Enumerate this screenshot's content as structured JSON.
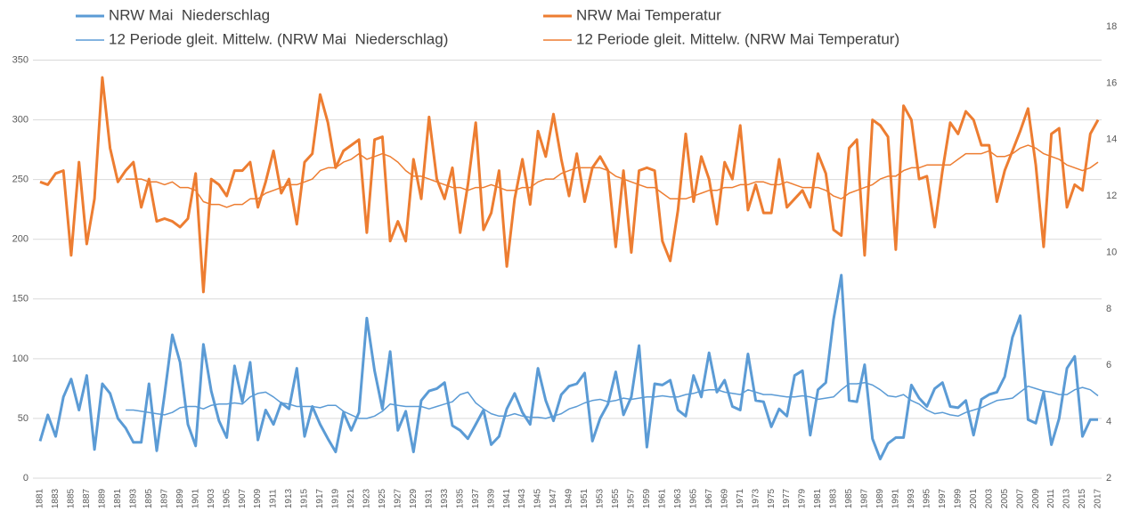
{
  "chart_data": {
    "type": "line",
    "categories": [
      "1881",
      null,
      "1883",
      null,
      "1885",
      null,
      "1887",
      null,
      "1889",
      null,
      "1891",
      null,
      "1893",
      null,
      "1895",
      null,
      "1897",
      null,
      "1899",
      null,
      "1901",
      null,
      "1903",
      null,
      "1905",
      null,
      "1907",
      null,
      "1909",
      null,
      "1911",
      null,
      "1913",
      null,
      "1915",
      null,
      "1917",
      null,
      "1919",
      null,
      "1921",
      null,
      "1923",
      null,
      "1925",
      null,
      "1927",
      null,
      "1929",
      null,
      "1931",
      null,
      "1933",
      null,
      "1935",
      null,
      "1937",
      null,
      "1939",
      null,
      "1941",
      null,
      "1943",
      null,
      "1945",
      null,
      "1947",
      null,
      "1949",
      null,
      "1951",
      null,
      "1953",
      null,
      "1955",
      null,
      "1957",
      null,
      "1959",
      null,
      "1961",
      null,
      "1963",
      null,
      "1965",
      null,
      "1967",
      null,
      "1969",
      null,
      "1971",
      null,
      "1973",
      null,
      "1975",
      null,
      "1977",
      null,
      "1979",
      null,
      "1981",
      null,
      "1983",
      null,
      "1985",
      null,
      "1987",
      null,
      "1989",
      null,
      "1991",
      null,
      "1993",
      null,
      "1995",
      null,
      "1997",
      null,
      "1999",
      null,
      "2001",
      null,
      "2003",
      null,
      "2005",
      null,
      "2007",
      null,
      "2009",
      null,
      "2011",
      null,
      "2013",
      null,
      "2015",
      null,
      "2017"
    ],
    "series": [
      {
        "name": "NRW Mai  Niederschlag",
        "color": "#5b9bd5",
        "width": 3,
        "values": [
          31,
          53,
          35,
          68,
          83,
          57,
          86,
          24,
          79,
          71,
          50,
          42,
          30,
          30,
          79,
          23,
          70,
          120,
          97,
          45,
          27,
          112,
          73,
          48,
          34,
          94,
          64,
          97,
          32,
          57,
          45,
          63,
          58,
          92,
          35,
          60,
          45,
          33,
          22,
          55,
          40,
          55,
          134,
          90,
          58,
          106,
          40,
          56,
          22,
          65,
          73,
          75,
          80,
          44,
          40,
          33,
          45,
          57,
          28,
          35,
          58,
          71,
          55,
          45,
          92,
          65,
          48,
          70,
          77,
          79,
          88,
          31,
          50,
          62,
          89,
          53,
          68,
          111,
          26,
          79,
          78,
          82,
          57,
          52,
          86,
          68,
          105,
          72,
          82,
          60,
          57,
          104,
          65,
          64,
          43,
          58,
          52,
          86,
          90,
          36,
          74,
          80,
          133,
          170,
          65,
          64,
          95,
          33,
          16,
          29,
          34,
          34,
          78,
          67,
          60,
          75,
          80,
          60,
          59,
          65,
          36,
          66,
          70,
          72,
          85,
          118,
          136,
          49,
          46,
          72,
          28,
          50,
          92,
          102,
          35,
          49,
          49
        ]
      },
      {
        "name": "NRW Mai Temperatur",
        "color": "#ed7d31",
        "width": 3,
        "axis": "y2",
        "values": [
          12.5,
          12.4,
          12.8,
          12.9,
          9.9,
          13.2,
          10.3,
          11.9,
          16.2,
          13.7,
          12.5,
          12.9,
          13.2,
          11.6,
          12.6,
          11.1,
          11.2,
          11.1,
          10.9,
          11.2,
          12.8,
          8.6,
          12.6,
          12.4,
          12.0,
          12.9,
          12.9,
          13.2,
          11.6,
          12.5,
          13.6,
          12.1,
          12.6,
          11.0,
          13.2,
          13.5,
          15.6,
          14.6,
          13.0,
          13.6,
          13.8,
          14.0,
          10.7,
          14.0,
          14.1,
          10.4,
          11.1,
          10.4,
          13.3,
          11.9,
          14.8,
          12.6,
          11.9,
          13.0,
          10.7,
          12.4,
          14.6,
          10.8,
          11.4,
          12.9,
          9.5,
          11.9,
          13.3,
          11.7,
          14.3,
          13.4,
          14.9,
          13.3,
          12.0,
          13.5,
          11.8,
          13.0,
          13.4,
          12.9,
          10.2,
          12.9,
          10.0,
          12.9,
          13.0,
          12.9,
          10.4,
          9.7,
          11.5,
          14.2,
          11.8,
          13.4,
          12.6,
          11.0,
          13.2,
          12.6,
          14.5,
          11.5,
          12.4,
          11.4,
          11.4,
          13.3,
          11.6,
          11.9,
          12.2,
          11.6,
          13.5,
          12.8,
          10.8,
          10.6,
          13.7,
          14.0,
          9.9,
          14.7,
          14.5,
          14.1,
          10.1,
          15.2,
          14.7,
          12.6,
          12.7,
          10.9,
          12.9,
          14.6,
          14.2,
          15.0,
          14.7,
          13.8,
          13.8,
          11.8,
          12.9,
          13.6,
          14.3,
          15.1,
          13.1,
          10.2,
          14.2,
          14.4,
          11.6,
          12.4,
          12.2,
          14.2,
          14.7
        ]
      },
      {
        "name": "12 Periode gleit. Mittelw. (NRW Mai  Niederschlag)",
        "color": "#5b9bd5",
        "width": 1.5,
        "values": [
          null,
          null,
          null,
          null,
          null,
          null,
          null,
          null,
          null,
          null,
          null,
          57,
          57,
          56,
          55,
          54,
          53,
          55,
          59,
          60,
          60,
          58,
          61,
          62,
          62,
          63,
          62,
          68,
          71,
          72,
          68,
          63,
          62,
          60,
          60,
          60,
          59,
          61,
          61,
          56,
          53,
          50,
          50,
          52,
          56,
          62,
          61,
          60,
          60,
          60,
          58,
          60,
          62,
          64,
          70,
          72,
          63,
          58,
          54,
          52,
          52,
          54,
          52,
          51,
          51,
          50,
          52,
          54,
          58,
          60,
          63,
          65,
          66,
          64,
          65,
          67,
          66,
          67,
          68,
          68,
          69,
          68,
          68,
          70,
          71,
          73,
          74,
          74,
          72,
          71,
          70,
          74,
          72,
          70,
          70,
          69,
          68,
          68,
          69,
          68,
          66,
          67,
          68,
          74,
          79,
          79,
          80,
          78,
          74,
          69,
          68,
          70,
          65,
          62,
          57,
          54,
          55,
          53,
          52,
          55,
          57,
          59,
          62,
          65,
          66,
          67,
          72,
          77,
          75,
          73,
          72,
          70,
          70,
          74,
          76,
          74,
          69
        ]
      },
      {
        "name": "12 Periode gleit. Mittelw. (NRW Mai Temperatur)",
        "color": "#ed7d31",
        "width": 1.5,
        "axis": "y2",
        "values": [
          null,
          null,
          null,
          null,
          null,
          null,
          null,
          null,
          null,
          null,
          null,
          12.6,
          12.6,
          12.6,
          12.5,
          12.5,
          12.4,
          12.5,
          12.3,
          12.3,
          12.2,
          11.8,
          11.7,
          11.7,
          11.6,
          11.7,
          11.7,
          11.9,
          11.9,
          12.1,
          12.2,
          12.3,
          12.4,
          12.4,
          12.5,
          12.6,
          12.9,
          13.0,
          13.0,
          13.2,
          13.3,
          13.5,
          13.3,
          13.4,
          13.5,
          13.4,
          13.2,
          12.9,
          12.7,
          12.7,
          12.6,
          12.5,
          12.4,
          12.3,
          12.3,
          12.2,
          12.3,
          12.3,
          12.4,
          12.3,
          12.2,
          12.2,
          12.3,
          12.3,
          12.5,
          12.6,
          12.6,
          12.8,
          12.9,
          13.0,
          13.0,
          13.0,
          13.0,
          12.9,
          12.7,
          12.6,
          12.5,
          12.4,
          12.3,
          12.3,
          12.1,
          11.9,
          11.9,
          11.9,
          12.0,
          12.1,
          12.2,
          12.2,
          12.3,
          12.3,
          12.4,
          12.4,
          12.5,
          12.5,
          12.4,
          12.4,
          12.5,
          12.4,
          12.3,
          12.3,
          12.3,
          12.2,
          12.0,
          11.9,
          12.1,
          12.2,
          12.3,
          12.4,
          12.6,
          12.7,
          12.7,
          12.9,
          13.0,
          13.0,
          13.1,
          13.1,
          13.1,
          13.1,
          13.3,
          13.5,
          13.5,
          13.5,
          13.6,
          13.4,
          13.4,
          13.5,
          13.7,
          13.8,
          13.7,
          13.5,
          13.4,
          13.3,
          13.1,
          13.0,
          12.9,
          13.0,
          13.2
        ]
      }
    ],
    "ylim": [
      0,
      378
    ],
    "yticks": [
      0,
      50,
      100,
      150,
      200,
      250,
      300,
      350
    ],
    "y2lim": [
      2,
      18
    ],
    "y2ticks": [
      2,
      4,
      6,
      8,
      10,
      12,
      14,
      16,
      18
    ],
    "grid": true
  }
}
